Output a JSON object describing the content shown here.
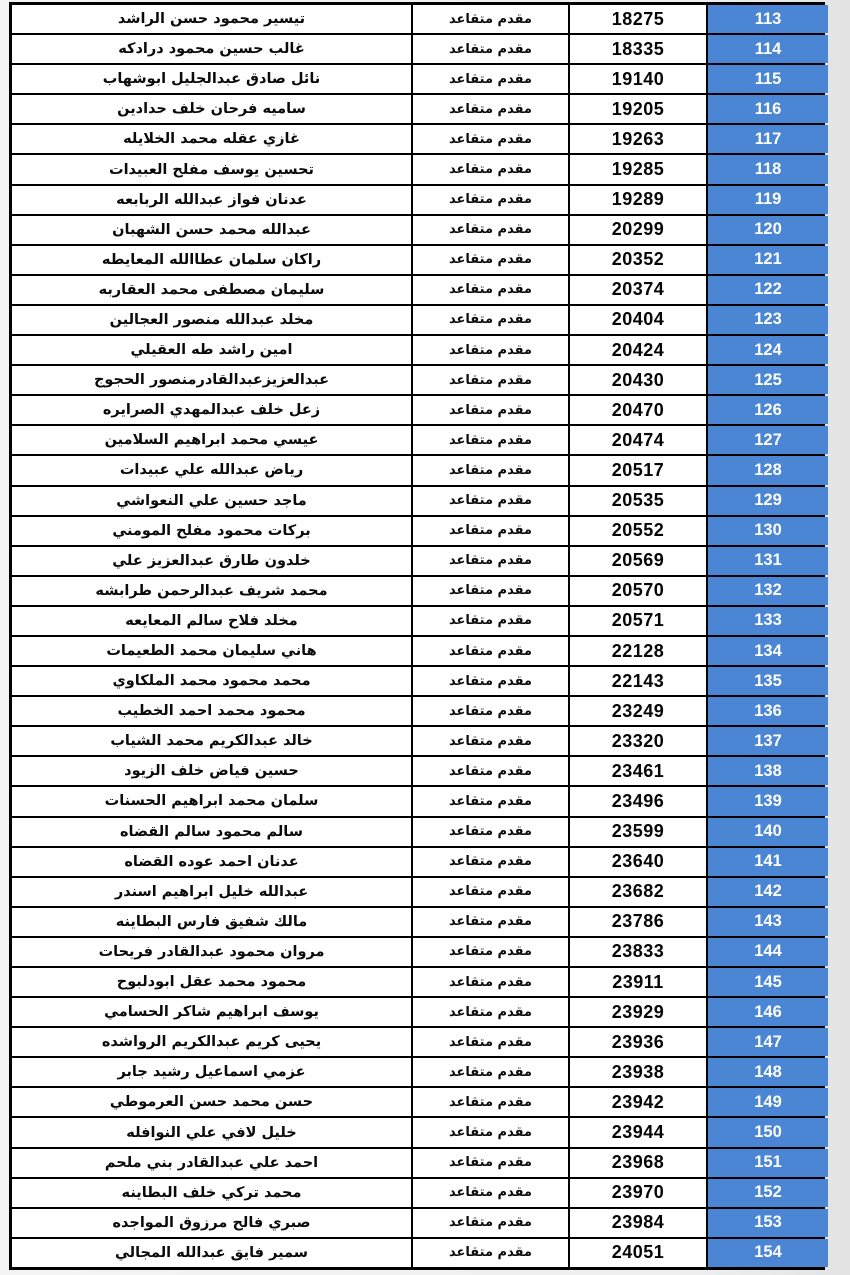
{
  "page": {
    "description": "Scanned roster page, continued table without header",
    "language": "ar"
  },
  "colors": {
    "index_column_accent": "#4a86d4",
    "table_border": "#000000",
    "page_background": "#efefef",
    "cell_background": "#ffffff",
    "index_text": "#fdfdfd"
  },
  "table": {
    "direction": "rtl",
    "columns": [
      "name",
      "rank",
      "serial",
      "index"
    ],
    "rows": [
      {
        "index": "113",
        "serial": "18275",
        "rank": "مقدم متقاعد",
        "name": "تيسير محمود حسن الراشد"
      },
      {
        "index": "114",
        "serial": "18335",
        "rank": "مقدم متقاعد",
        "name": "غالب حسين محمود درادكه"
      },
      {
        "index": "115",
        "serial": "19140",
        "rank": "مقدم متقاعد",
        "name": "نائل صادق عبدالجليل ابوشهاب"
      },
      {
        "index": "116",
        "serial": "19205",
        "rank": "مقدم متقاعد",
        "name": "ساميه فرحان خلف حدادين"
      },
      {
        "index": "117",
        "serial": "19263",
        "rank": "مقدم متقاعد",
        "name": "غازي عقله محمد الخلايله"
      },
      {
        "index": "118",
        "serial": "19285",
        "rank": "مقدم متقاعد",
        "name": "تحسين يوسف مفلح العبيدات"
      },
      {
        "index": "119",
        "serial": "19289",
        "rank": "مقدم متقاعد",
        "name": "عدنان فواز عبدالله الربابعه"
      },
      {
        "index": "120",
        "serial": "20299",
        "rank": "مقدم متقاعد",
        "name": "عبدالله محمد حسن الشهبان"
      },
      {
        "index": "121",
        "serial": "20352",
        "rank": "مقدم متقاعد",
        "name": "راكان سلمان عطاالله المعايطه"
      },
      {
        "index": "122",
        "serial": "20374",
        "rank": "مقدم متقاعد",
        "name": "سليمان مصطفى محمد العقاربه"
      },
      {
        "index": "123",
        "serial": "20404",
        "rank": "مقدم متقاعد",
        "name": "مخلد عبدالله منصور العجالين"
      },
      {
        "index": "124",
        "serial": "20424",
        "rank": "مقدم متقاعد",
        "name": "امين راشد طه العقيلي"
      },
      {
        "index": "125",
        "serial": "20430",
        "rank": "مقدم متقاعد",
        "name": "عبدالعزيزعبدالقادرمنصور الحجوج"
      },
      {
        "index": "126",
        "serial": "20470",
        "rank": "مقدم متقاعد",
        "name": "زعل خلف عبدالمهدي الصرايره"
      },
      {
        "index": "127",
        "serial": "20474",
        "rank": "مقدم متقاعد",
        "name": "عيسي محمد ابراهيم السلامين"
      },
      {
        "index": "128",
        "serial": "20517",
        "rank": "مقدم متقاعد",
        "name": "رياض عبدالله علي عبيدات"
      },
      {
        "index": "129",
        "serial": "20535",
        "rank": "مقدم متقاعد",
        "name": "ماجد حسين علي النعواشي"
      },
      {
        "index": "130",
        "serial": "20552",
        "rank": "مقدم متقاعد",
        "name": "بركات محمود مفلح المومني"
      },
      {
        "index": "131",
        "serial": "20569",
        "rank": "مقدم متقاعد",
        "name": "خلدون طارق عبدالعزيز علي"
      },
      {
        "index": "132",
        "serial": "20570",
        "rank": "مقدم متقاعد",
        "name": "محمد شريف عبدالرحمن طرابشه"
      },
      {
        "index": "133",
        "serial": "20571",
        "rank": "مقدم متقاعد",
        "name": "مخلد فلاح سالم المعايعه"
      },
      {
        "index": "134",
        "serial": "22128",
        "rank": "مقدم متقاعد",
        "name": "هاني سليمان محمد الطعيمات"
      },
      {
        "index": "135",
        "serial": "22143",
        "rank": "مقدم متقاعد",
        "name": "محمد محمود محمد الملكاوي"
      },
      {
        "index": "136",
        "serial": "23249",
        "rank": "مقدم متقاعد",
        "name": "محمود محمد احمد الخطيب"
      },
      {
        "index": "137",
        "serial": "23320",
        "rank": "مقدم متقاعد",
        "name": "خالد عبدالكريم محمد الشياب"
      },
      {
        "index": "138",
        "serial": "23461",
        "rank": "مقدم متقاعد",
        "name": "حسين فياض خلف الزيود"
      },
      {
        "index": "139",
        "serial": "23496",
        "rank": "مقدم متقاعد",
        "name": "سلمان محمد ابراهيم الحسنات"
      },
      {
        "index": "140",
        "serial": "23599",
        "rank": "مقدم متقاعد",
        "name": "سالم محمود سالم القضاه"
      },
      {
        "index": "141",
        "serial": "23640",
        "rank": "مقدم متقاعد",
        "name": "عدنان احمد عوده القضاه"
      },
      {
        "index": "142",
        "serial": "23682",
        "rank": "مقدم متقاعد",
        "name": "عبدالله خليل ابراهيم اسندر"
      },
      {
        "index": "143",
        "serial": "23786",
        "rank": "مقدم متقاعد",
        "name": "مالك شفيق فارس البطاينه"
      },
      {
        "index": "144",
        "serial": "23833",
        "rank": "مقدم متقاعد",
        "name": "مروان محمود عبدالقادر فريحات"
      },
      {
        "index": "145",
        "serial": "23911",
        "rank": "مقدم متقاعد",
        "name": "محمود محمد عقل ابودلبوح"
      },
      {
        "index": "146",
        "serial": "23929",
        "rank": "مقدم متقاعد",
        "name": "يوسف ابراهيم شاكر الحسامي"
      },
      {
        "index": "147",
        "serial": "23936",
        "rank": "مقدم متقاعد",
        "name": "يحيى كريم عبدالكريم الرواشده"
      },
      {
        "index": "148",
        "serial": "23938",
        "rank": "مقدم متقاعد",
        "name": "عزمي اسماعيل رشيد جابر"
      },
      {
        "index": "149",
        "serial": "23942",
        "rank": "مقدم متقاعد",
        "name": "حسن محمد حسن العرموطي"
      },
      {
        "index": "150",
        "serial": "23944",
        "rank": "مقدم متقاعد",
        "name": "خليل لافي علي النوافله"
      },
      {
        "index": "151",
        "serial": "23968",
        "rank": "مقدم متقاعد",
        "name": "احمد علي عبدالقادر بني ملحم"
      },
      {
        "index": "152",
        "serial": "23970",
        "rank": "مقدم متقاعد",
        "name": "محمد تركي خلف البطاينه"
      },
      {
        "index": "153",
        "serial": "23984",
        "rank": "مقدم متقاعد",
        "name": "صبري فالح مرزوق المواجده"
      },
      {
        "index": "154",
        "serial": "24051",
        "rank": "مقدم متقاعد",
        "name": "سمير فايق عبدالله المجالي"
      }
    ]
  }
}
